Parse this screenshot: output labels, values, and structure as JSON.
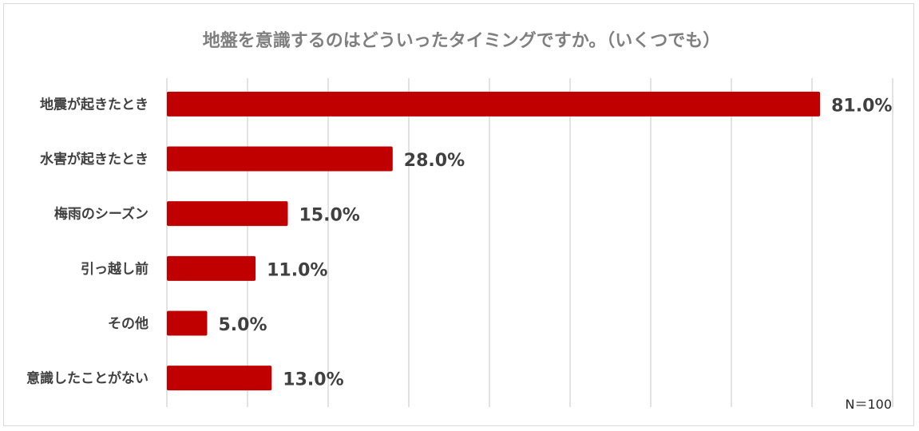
{
  "chart_data": {
    "type": "bar",
    "orientation": "horizontal",
    "title": "地盤を意識するのはどういったタイミングですか。（いくつでも）",
    "categories": [
      "地震が起きたとき",
      "水害が起きたとき",
      "梅雨のシーズン",
      "引っ越し前",
      "その他",
      "意識したことがない"
    ],
    "values": [
      81.0,
      28.0,
      15.0,
      11.0,
      5.0,
      13.0
    ],
    "value_labels": [
      "81.0%",
      "28.0%",
      "15.0%",
      "11.0%",
      "5.0%",
      "13.0%"
    ],
    "xlim": [
      0,
      90
    ],
    "grid": true,
    "bar_color": "#c00000",
    "note": "N＝100"
  }
}
